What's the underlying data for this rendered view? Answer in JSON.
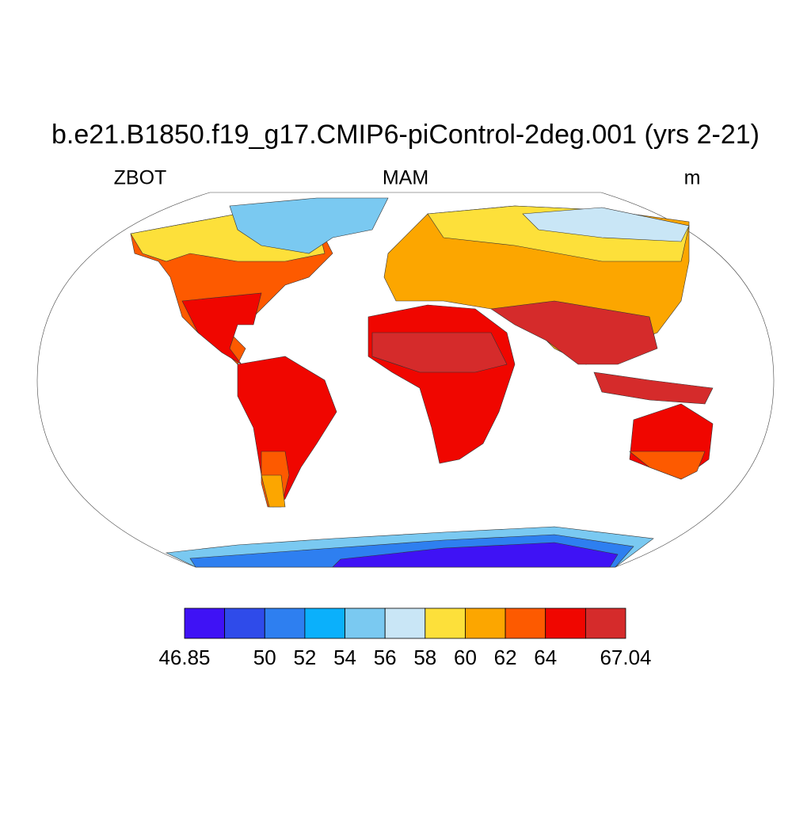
{
  "title": "b.e21.B1850.f19_g17.CMIP6-piControl-2deg.001 (yrs 2-21)",
  "left_string": "ZBOT",
  "center_string": "MAM",
  "right_string": "m",
  "colorbar": {
    "colors": [
      "#3f12f5",
      "#2f4bea",
      "#2e7ff0",
      "#0bb0fb",
      "#7ac9f1",
      "#c9e6f6",
      "#fde03a",
      "#fca600",
      "#fd5a00",
      "#f00600",
      "#d52b2b"
    ],
    "ticks": [
      46.85,
      50,
      52,
      54,
      56,
      58,
      60,
      62,
      64,
      67.04
    ]
  }
}
